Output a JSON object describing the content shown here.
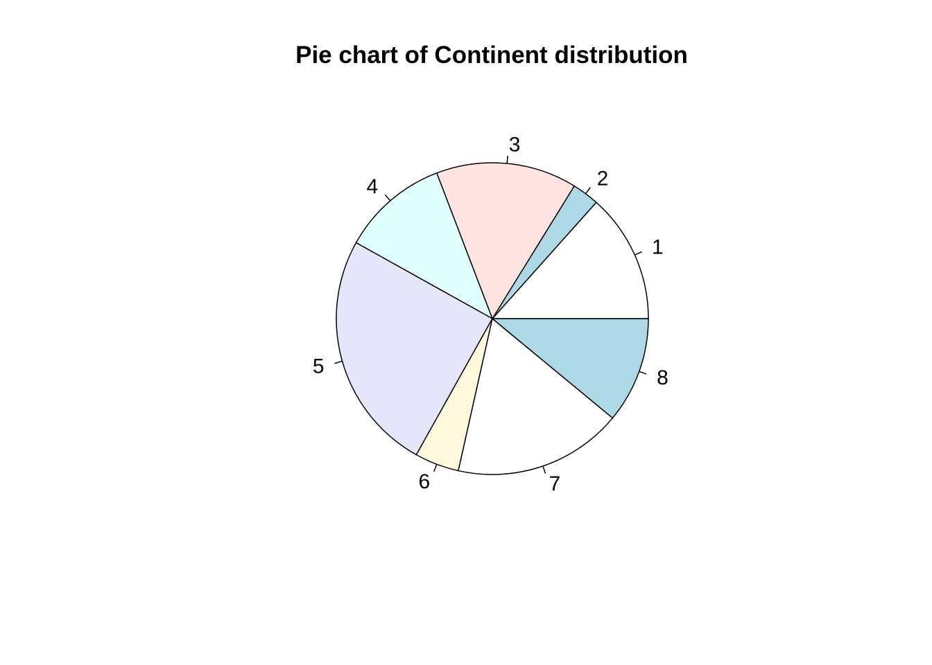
{
  "chart_data": {
    "type": "pie",
    "title": "Pie chart of Continent distribution",
    "labels": [
      "1",
      "2",
      "3",
      "4",
      "5",
      "6",
      "7",
      "8"
    ],
    "values": [
      13.4,
      2.8,
      14.6,
      11.1,
      25.0,
      4.6,
      17.5,
      11.0
    ],
    "colors": [
      "#FFFFFF",
      "#ADD8E6",
      "#FFE4E1",
      "#E0FFFF",
      "#E6E6FA",
      "#FFF8DC",
      "#FFFFFF",
      "#ADD8E6"
    ],
    "start_angle_degrees": 0,
    "direction": "counterclockwise",
    "legend": "none"
  }
}
